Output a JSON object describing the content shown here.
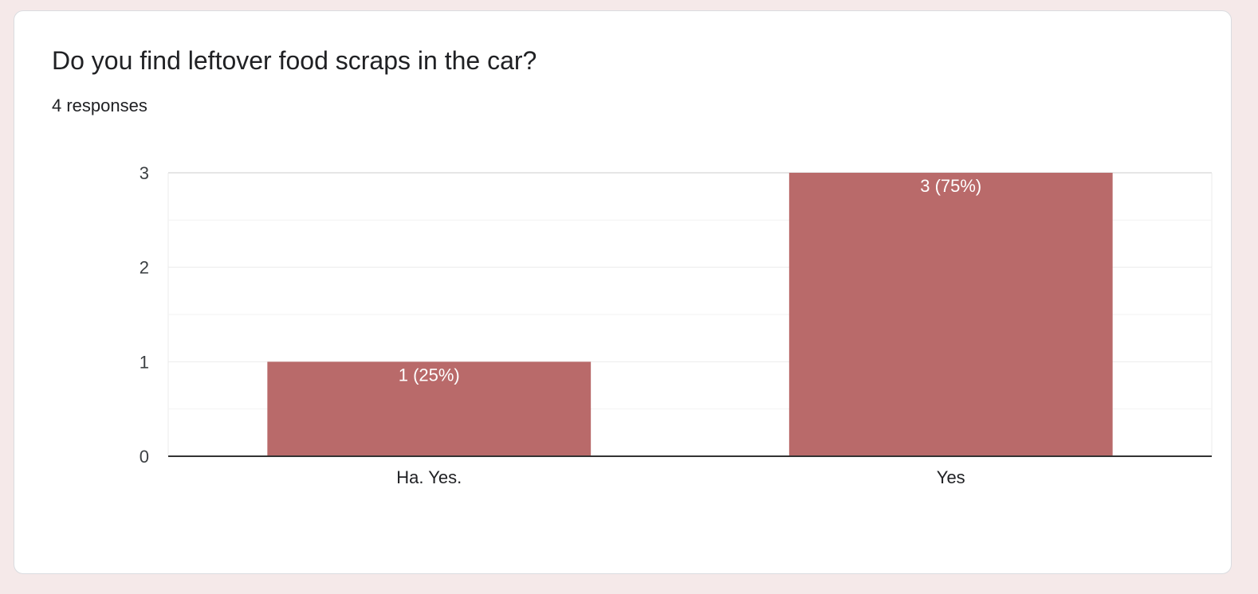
{
  "question": {
    "title": "Do you find leftover food scraps in the car?",
    "responses": "4 responses"
  },
  "colors": {
    "bar": "#b96a6a",
    "background": "#f5e9e9",
    "card": "#ffffff"
  },
  "chart_data": {
    "type": "bar",
    "categories": [
      "Ha. Yes.",
      "Yes"
    ],
    "values": [
      1,
      3
    ],
    "data_labels": [
      "1 (25%)",
      "3 (75%)"
    ],
    "title": "",
    "xlabel": "",
    "ylabel": "",
    "ylim": [
      0,
      3
    ],
    "y_ticks": [
      0,
      1,
      2,
      3
    ],
    "grid": true
  }
}
